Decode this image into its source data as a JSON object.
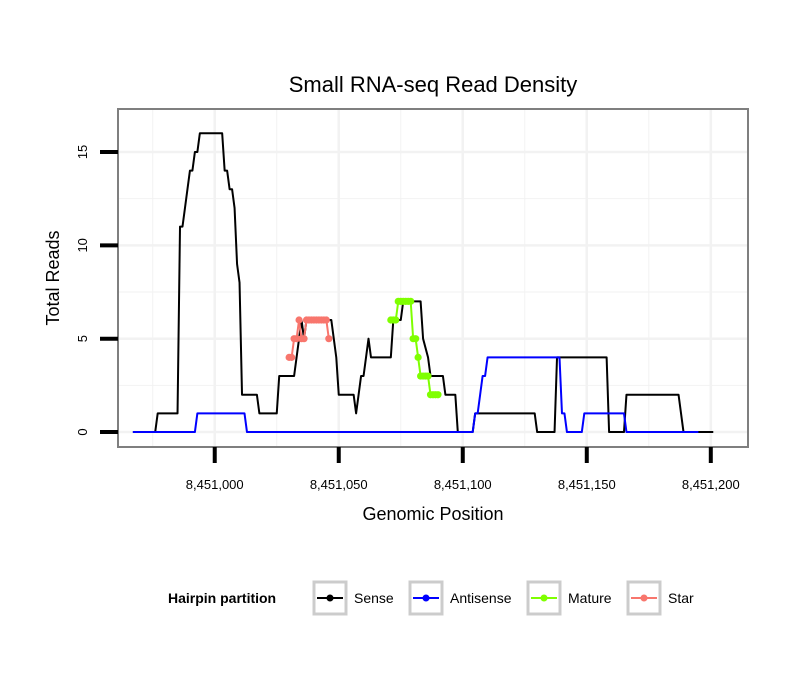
{
  "chart_data": {
    "type": "line",
    "title": "Small RNA-seq Read Density",
    "xlabel": "Genomic Position",
    "ylabel": "Total Reads",
    "xlim": [
      8450961,
      8451215
    ],
    "ylim": [
      -0.8,
      17.3
    ],
    "x_ticks": [
      {
        "value": 8451000,
        "label": "8,451,000"
      },
      {
        "value": 8451050,
        "label": "8,451,050"
      },
      {
        "value": 8451100,
        "label": "8,451,100"
      },
      {
        "value": 8451150,
        "label": "8,451,150"
      },
      {
        "value": 8451200,
        "label": "8,451,200"
      }
    ],
    "y_ticks": [
      {
        "value": 0,
        "label": "0"
      },
      {
        "value": 5,
        "label": "5"
      },
      {
        "value": 10,
        "label": "10"
      },
      {
        "value": 15,
        "label": "15"
      }
    ],
    "grid": true,
    "legend_position": "bottom",
    "legend_title": "Hairpin partition",
    "colors": {
      "sense": "#000000",
      "antisense": "#0000ff",
      "mature": "#7fff00",
      "star": "#f8766d",
      "grid": "#f2f2f2",
      "border": "#7f7f7f",
      "legend_key_border": "#cccccc"
    },
    "series": [
      {
        "name": "Sense",
        "color": "#000000",
        "points": [
          [
            8450967,
            0
          ],
          [
            8450976,
            0
          ],
          [
            8450977,
            1
          ],
          [
            8450985,
            1
          ],
          [
            8450986,
            11
          ],
          [
            8450987,
            11
          ],
          [
            8450988,
            12
          ],
          [
            8450989,
            13
          ],
          [
            8450990,
            14
          ],
          [
            8450991,
            14
          ],
          [
            8450992,
            15
          ],
          [
            8450993,
            15
          ],
          [
            8450994,
            16
          ],
          [
            8450995,
            16
          ],
          [
            8451003,
            16
          ],
          [
            8451004,
            14
          ],
          [
            8451005,
            14
          ],
          [
            8451006,
            13
          ],
          [
            8451007,
            13
          ],
          [
            8451008,
            12
          ],
          [
            8451009,
            9
          ],
          [
            8451010,
            8
          ],
          [
            8451011,
            2
          ],
          [
            8451017,
            2
          ],
          [
            8451018,
            1
          ],
          [
            8451025,
            1
          ],
          [
            8451026,
            3
          ],
          [
            8451032,
            3
          ],
          [
            8451033,
            4
          ],
          [
            8451034,
            5
          ],
          [
            8451035,
            6
          ],
          [
            8451036,
            5
          ],
          [
            8451037,
            6
          ],
          [
            8451047,
            6
          ],
          [
            8451048,
            5
          ],
          [
            8451049,
            4
          ],
          [
            8451050,
            2
          ],
          [
            8451056,
            2
          ],
          [
            8451057,
            1
          ],
          [
            8451058,
            2
          ],
          [
            8451059,
            3
          ],
          [
            8451060,
            3
          ],
          [
            8451061,
            4
          ],
          [
            8451062,
            5
          ],
          [
            8451063,
            4
          ],
          [
            8451071,
            4
          ],
          [
            8451072,
            6
          ],
          [
            8451075,
            6
          ],
          [
            8451076,
            7
          ],
          [
            8451083,
            7
          ],
          [
            8451084,
            5
          ],
          [
            8451086,
            4
          ],
          [
            8451087,
            3
          ],
          [
            8451092,
            3
          ],
          [
            8451093,
            2
          ],
          [
            8451097,
            2
          ],
          [
            8451098,
            0
          ],
          [
            8451104,
            0
          ],
          [
            8451105,
            1
          ],
          [
            8451129,
            1
          ],
          [
            8451130,
            0
          ],
          [
            8451137,
            0
          ],
          [
            8451138,
            4
          ],
          [
            8451158,
            4
          ],
          [
            8451159,
            0
          ],
          [
            8451165,
            0
          ],
          [
            8451166,
            2
          ],
          [
            8451187,
            2
          ],
          [
            8451188,
            1
          ],
          [
            8451189,
            0
          ],
          [
            8451201,
            0
          ]
        ]
      },
      {
        "name": "Antisense",
        "color": "#0000ff",
        "points": [
          [
            8450967,
            0
          ],
          [
            8450992,
            0
          ],
          [
            8450993,
            1
          ],
          [
            8451012,
            1
          ],
          [
            8451013,
            0
          ],
          [
            8451104,
            0
          ],
          [
            8451105,
            1
          ],
          [
            8451106,
            1
          ],
          [
            8451107,
            2
          ],
          [
            8451108,
            3
          ],
          [
            8451109,
            3
          ],
          [
            8451110,
            4
          ],
          [
            8451139,
            4
          ],
          [
            8451140,
            1
          ],
          [
            8451141,
            1
          ],
          [
            8451142,
            0
          ],
          [
            8451148,
            0
          ],
          [
            8451149,
            1
          ],
          [
            8451165,
            1
          ],
          [
            8451166,
            0
          ],
          [
            8451195,
            0
          ]
        ]
      },
      {
        "name": "Mature",
        "color": "#7fff00",
        "points": [
          [
            8451071,
            6
          ],
          [
            8451072,
            6
          ],
          [
            8451073,
            6
          ],
          [
            8451074,
            7
          ],
          [
            8451075,
            7
          ],
          [
            8451076,
            7
          ],
          [
            8451077,
            7
          ],
          [
            8451078,
            7
          ],
          [
            8451079,
            7
          ],
          [
            8451080,
            5
          ],
          [
            8451081,
            5
          ],
          [
            8451082,
            4
          ],
          [
            8451083,
            3
          ],
          [
            8451084,
            3
          ],
          [
            8451085,
            3
          ],
          [
            8451086,
            3
          ],
          [
            8451087,
            2
          ],
          [
            8451088,
            2
          ],
          [
            8451089,
            2
          ],
          [
            8451090,
            2
          ]
        ]
      },
      {
        "name": "Star",
        "color": "#f8766d",
        "points": [
          [
            8451030,
            4
          ],
          [
            8451031,
            4
          ],
          [
            8451032,
            5
          ],
          [
            8451033,
            5
          ],
          [
            8451034,
            6
          ],
          [
            8451035,
            5
          ],
          [
            8451036,
            5
          ],
          [
            8451037,
            6
          ],
          [
            8451038,
            6
          ],
          [
            8451039,
            6
          ],
          [
            8451040,
            6
          ],
          [
            8451041,
            6
          ],
          [
            8451042,
            6
          ],
          [
            8451043,
            6
          ],
          [
            8451044,
            6
          ],
          [
            8451045,
            6
          ],
          [
            8451046,
            5
          ]
        ]
      }
    ],
    "legend_items": [
      {
        "name": "Sense",
        "color": "#000000"
      },
      {
        "name": "Antisense",
        "color": "#0000ff"
      },
      {
        "name": "Mature",
        "color": "#7fff00"
      },
      {
        "name": "Star",
        "color": "#f8766d"
      }
    ]
  }
}
